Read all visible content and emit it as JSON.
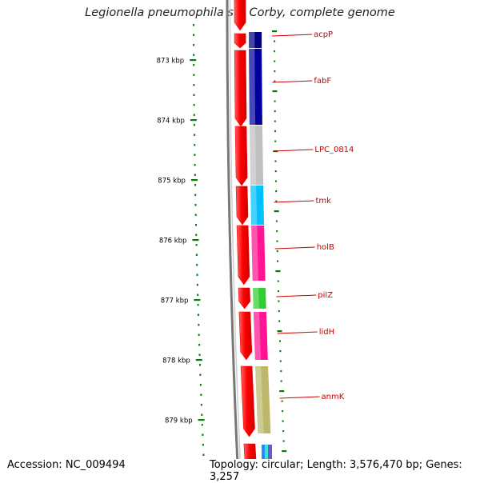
{
  "title": "Legionella pneumophila str. Corby, complete genome",
  "footer": {
    "accession": "Accession: NC_009494",
    "summary": "Topology: circular; Length: 3,576,470 bp; Genes: 3,257"
  },
  "scale": {
    "unit": "kbp",
    "ticks": [
      {
        "label": "873 kbp",
        "kbp": 873
      },
      {
        "label": "874 kbp",
        "kbp": 874
      },
      {
        "label": "875 kbp",
        "kbp": 875
      },
      {
        "label": "876 kbp",
        "kbp": 876
      },
      {
        "label": "877 kbp",
        "kbp": 877
      },
      {
        "label": "878 kbp",
        "kbp": 878
      },
      {
        "label": "879 kbp",
        "kbp": 879
      }
    ]
  },
  "colors": {
    "cds_strand": "#ff0000",
    "label_text": "#cc0000",
    "tick_green": "#008000",
    "axis": "#333333",
    "backbone": "#888888"
  },
  "genes": [
    {
      "name": "acpP",
      "color": "#000080"
    },
    {
      "name": "fabF",
      "color": "#0000a0"
    },
    {
      "name": "LPC_0814",
      "color": "#c0c0c0"
    },
    {
      "name": "tmk",
      "color": "#00bfff"
    },
    {
      "name": "holB",
      "color": "#ff1493"
    },
    {
      "name": "pilZ",
      "color": "#32cd32"
    },
    {
      "name": "lidH",
      "color": "#ff1493"
    },
    {
      "name": "anmK",
      "color": "#bdb76b"
    }
  ]
}
